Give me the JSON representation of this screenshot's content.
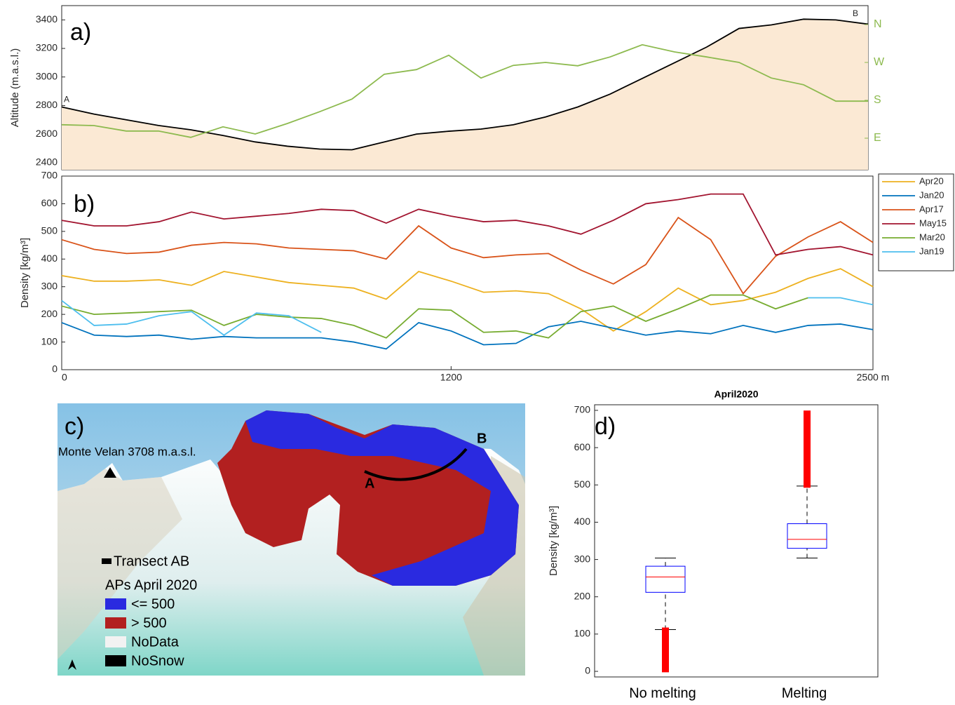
{
  "chart_data": [
    {
      "type": "area_line",
      "panel_label": "a)",
      "y_label": "Altitude (m.a.s.l.)",
      "start_label": "A",
      "end_label": "B",
      "x": [
        0,
        100,
        200,
        300,
        400,
        500,
        600,
        700,
        800,
        900,
        1000,
        1100,
        1200,
        1300,
        1400,
        1500,
        1600,
        1700,
        1800,
        1900,
        2000,
        2100,
        2200,
        2300,
        2400,
        2500
      ],
      "xlim": [
        0,
        2500
      ],
      "ylim": [
        2350,
        3500
      ],
      "yticks": [
        2400,
        2600,
        2800,
        3000,
        3200,
        3400
      ],
      "y2lim": [
        15,
        405
      ],
      "y2ticks": [
        {
          "value": 90,
          "label": "E"
        },
        {
          "value": 180,
          "label": "S"
        },
        {
          "value": 270,
          "label": "W"
        },
        {
          "value": 360,
          "label": "N"
        }
      ],
      "y2_color": "#8dba4f",
      "series": [
        {
          "color": "#000000",
          "fill": "#fbe9d4",
          "values": [
            2790,
            2740,
            2700,
            2660,
            2630,
            2590,
            2545,
            2515,
            2495,
            2490,
            2545,
            2600,
            2620,
            2635,
            2665,
            2720,
            2790,
            2880,
            2990,
            3100,
            3210,
            3340,
            3365,
            3405,
            3400,
            3370
          ]
        },
        {
          "color": "#8dba4f",
          "axis": "y2",
          "values": [
            122,
            120,
            107,
            107,
            92,
            117,
            100,
            125,
            153,
            183,
            242,
            253,
            287,
            233,
            263,
            270,
            262,
            283,
            312,
            295,
            283,
            270,
            233,
            217,
            178,
            178
          ]
        }
      ]
    },
    {
      "type": "line",
      "panel_label": "b)",
      "y_label": "Density [kg/m³]",
      "legend": "right",
      "x": [
        0,
        100,
        200,
        300,
        400,
        500,
        600,
        700,
        800,
        900,
        1000,
        1100,
        1200,
        1300,
        1400,
        1500,
        1600,
        1700,
        1800,
        1900,
        2000,
        2100,
        2200,
        2300,
        2400,
        2500
      ],
      "xlim": [
        0,
        2500
      ],
      "xticks": [
        0,
        1200,
        {
          "value": 2500,
          "label": "2500 m"
        }
      ],
      "ylim": [
        0,
        700
      ],
      "yticks": [
        0,
        100,
        200,
        300,
        400,
        500,
        600,
        700
      ],
      "series": [
        {
          "name": "Apr20",
          "color": "#edb120",
          "values": [
            340,
            320,
            320,
            325,
            305,
            355,
            335,
            315,
            305,
            295,
            255,
            355,
            320,
            280,
            285,
            275,
            220,
            140,
            210,
            295,
            235,
            250,
            280,
            330,
            365,
            300
          ]
        },
        {
          "name": "Jan20",
          "color": "#0072bd",
          "values": [
            170,
            125,
            120,
            125,
            110,
            120,
            115,
            115,
            115,
            100,
            75,
            170,
            140,
            90,
            95,
            155,
            175,
            150,
            125,
            140,
            130,
            160,
            135,
            160,
            165,
            145
          ]
        },
        {
          "name": "Apr17",
          "color": "#d95319",
          "values": [
            470,
            435,
            420,
            425,
            450,
            460,
            455,
            440,
            435,
            430,
            400,
            520,
            440,
            405,
            415,
            420,
            360,
            310,
            380,
            550,
            470,
            275,
            410,
            480,
            535,
            460
          ]
        },
        {
          "name": "May15",
          "color": "#a2142f",
          "values": [
            540,
            520,
            520,
            535,
            570,
            545,
            555,
            565,
            580,
            575,
            530,
            580,
            555,
            535,
            540,
            520,
            490,
            540,
            600,
            615,
            635,
            635,
            415,
            435,
            445,
            415
          ]
        },
        {
          "name": "Mar20",
          "color": "#77ac30",
          "values": [
            230,
            200,
            205,
            210,
            215,
            160,
            200,
            190,
            185,
            160,
            115,
            220,
            215,
            135,
            140,
            115,
            210,
            230,
            175,
            220,
            270,
            270,
            220,
            260,
            null,
            null
          ]
        },
        {
          "name": "Jan19",
          "color": "#4dbeee",
          "values": [
            250,
            160,
            165,
            195,
            210,
            125,
            205,
            195,
            135,
            null,
            null,
            null,
            null,
            null,
            null,
            null,
            null,
            null,
            null,
            null,
            null,
            null,
            null,
            260,
            260,
            235
          ]
        }
      ]
    },
    {
      "type": "box",
      "panel_label": "d)",
      "title": "April2020",
      "y_label": "Density [kg/m³]",
      "categories": [
        "No melting",
        "Melting"
      ],
      "ylim": [
        -15,
        715
      ],
      "yticks": [
        0,
        100,
        200,
        300,
        400,
        500,
        600,
        700
      ],
      "color": "#0000ff",
      "median_color": "#ff0000",
      "outlier_color": "#ff0000",
      "boxes": [
        {
          "whisker_low": 112,
          "q1": 212,
          "median": 253,
          "q3": 282,
          "whisker_high": 304,
          "outliers": [
            5,
            10,
            15,
            20,
            25,
            30,
            35,
            40,
            45,
            50,
            55,
            60,
            65,
            70,
            75,
            80,
            85,
            90,
            95,
            100,
            105,
            110
          ]
        },
        {
          "whisker_low": 304,
          "q1": 330,
          "median": 354,
          "q3": 396,
          "whisker_high": 497,
          "outliers": [
            500,
            510,
            520,
            530,
            540,
            550,
            560,
            570,
            580,
            590,
            600,
            610,
            620,
            630,
            640,
            650,
            660,
            670,
            680,
            692
          ]
        }
      ]
    }
  ],
  "map": {
    "panel_label": "c)",
    "peak_label": "Monte Velan 3708 m.a.s.l.",
    "point_a": "A",
    "point_b": "B",
    "transect_label": "Transect AB",
    "legend_title": "APs April 2020",
    "legend": [
      "<= 500",
      "> 500",
      "NoData",
      "NoSnow"
    ]
  }
}
